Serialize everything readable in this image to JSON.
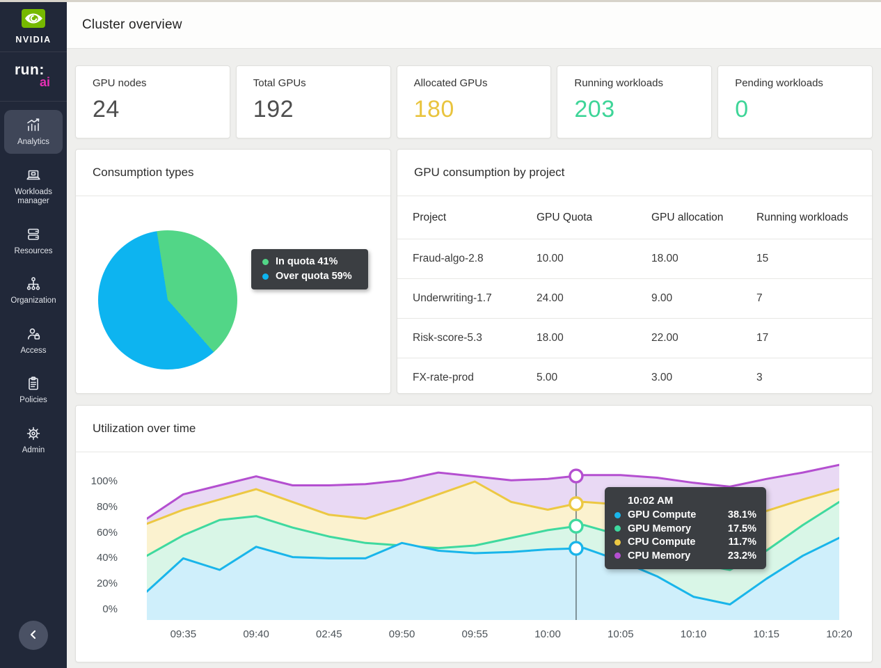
{
  "app": {
    "brand_nvidia": "NVIDIA",
    "brand_run": "run:",
    "brand_ai": "ai"
  },
  "header": {
    "title": "Cluster overview"
  },
  "sidebar": {
    "items": [
      {
        "label": "Analytics",
        "active": true
      },
      {
        "label": "Workloads manager",
        "active": false
      },
      {
        "label": "Resources",
        "active": false
      },
      {
        "label": "Organization",
        "active": false
      },
      {
        "label": "Access",
        "active": false
      },
      {
        "label": "Policies",
        "active": false
      },
      {
        "label": "Admin",
        "active": false
      }
    ]
  },
  "stats": [
    {
      "label": "GPU nodes",
      "value": "24",
      "color": "#4e4e4e"
    },
    {
      "label": "Total GPUs",
      "value": "192",
      "color": "#4e4e4e"
    },
    {
      "label": "Allocated GPUs",
      "value": "180",
      "color": "#e9c43e"
    },
    {
      "label": "Running workloads",
      "value": "203",
      "color": "#3ed598"
    },
    {
      "label": "Pending workloads",
      "value": "0",
      "color": "#3ed598"
    }
  ],
  "consumption": {
    "title": "Consumption types"
  },
  "projects_table": {
    "title": "GPU consumption by project",
    "columns": [
      "Project",
      "GPU Quota",
      "GPU allocation",
      "Running workloads"
    ],
    "rows": [
      [
        "Fraud-algo-2.8",
        "10.00",
        "18.00",
        "15"
      ],
      [
        "Underwriting-1.7",
        "24.00",
        "9.00",
        "7"
      ],
      [
        "Risk-score-5.3",
        "18.00",
        "22.00",
        "17"
      ],
      [
        "FX-rate-prod",
        "5.00",
        "3.00",
        "3"
      ]
    ]
  },
  "utilization": {
    "title": "Utilization over time"
  },
  "chart_data": [
    {
      "type": "pie",
      "title": "Consumption types",
      "labels": [
        "In quota",
        "Over quota"
      ],
      "values": [
        41,
        59
      ],
      "colors": [
        "#52d687",
        "#0db4f0"
      ],
      "start_angle_deg": -9,
      "legend": [
        {
          "label": "In quota",
          "value": "41%",
          "color": "#52d687"
        },
        {
          "label": "Over quota",
          "value": "59%",
          "color": "#0db4f0"
        }
      ],
      "legend_position": "right"
    },
    {
      "type": "area",
      "title": "Utilization over time",
      "x_labels": [
        "09:35",
        "09:40",
        "02:45",
        "09:50",
        "09:55",
        "10:00",
        "10:05",
        "10:10",
        "10:15",
        "10:20"
      ],
      "y_ticks": [
        100,
        80,
        60,
        40,
        20,
        0
      ],
      "y_tick_suffix": "%",
      "ylim": [
        0,
        113
      ],
      "grid": false,
      "series": [
        {
          "name": "CPU Memory",
          "color": "#b44fd0",
          "fill": "#e9d9f4",
          "values": [
            71,
            90,
            97,
            104,
            97,
            97,
            98,
            101,
            107,
            104,
            101,
            102,
            105,
            105,
            103,
            99,
            96,
            102,
            107,
            113
          ]
        },
        {
          "name": "CPU Compute",
          "color": "#ecc843",
          "fill": "#fbf2cf",
          "values": [
            67,
            78,
            86,
            94,
            84,
            74,
            71,
            80,
            90,
            100,
            84,
            78,
            84,
            82,
            79,
            74,
            70,
            77,
            86,
            94
          ]
        },
        {
          "name": "GPU Memory",
          "color": "#3fd99f",
          "fill": "#d9f6e7",
          "values": [
            42,
            58,
            70,
            73,
            64,
            57,
            52,
            50,
            48,
            50,
            56,
            62,
            66,
            58,
            46,
            36,
            31,
            46,
            66,
            84
          ]
        },
        {
          "name": "GPU Compute",
          "color": "#19b5ea",
          "fill": "#cfeffb",
          "values": [
            14,
            40,
            31,
            49,
            41,
            40,
            40,
            52,
            46,
            44,
            45,
            47,
            48,
            38,
            26,
            10,
            4,
            24,
            42,
            56
          ]
        }
      ],
      "ref_line_fraction": 0.62,
      "tooltip": {
        "time": "10:02 AM",
        "rows": [
          {
            "label": "GPU Compute",
            "value": "38.1%",
            "color": "#19b5ea"
          },
          {
            "label": "GPU Memory",
            "value": "17.5%",
            "color": "#3fd99f"
          },
          {
            "label": "CPU Compute",
            "value": "11.7%",
            "color": "#ecc843"
          },
          {
            "label": "CPU Memory",
            "value": "23.2%",
            "color": "#b44fd0"
          }
        ]
      }
    }
  ]
}
